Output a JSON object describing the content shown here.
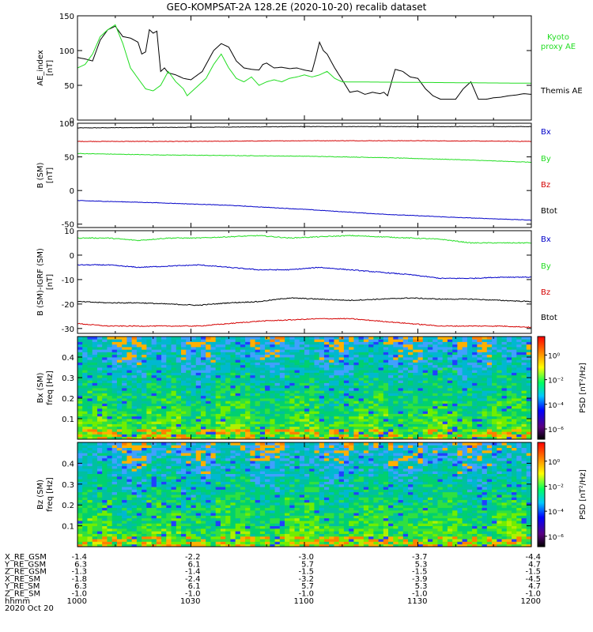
{
  "title": "GEO-KOMPSAT-2A 128.2E (2020-10-20) recalib dataset",
  "colors": {
    "black": "#000000",
    "red": "#d40000",
    "green": "#22dd22",
    "blue": "#0000c8",
    "kyoto": "#22dd22"
  },
  "chart_data": [
    {
      "type": "line",
      "id": "ae",
      "ylabel": "AE_index",
      "yunits": "[nT]",
      "ylim": [
        0,
        150
      ],
      "yticks": [
        0,
        50,
        100,
        150
      ],
      "xlim": [
        0,
        120
      ],
      "legend": [
        {
          "text": "Kyoto",
          "color": "#22dd22"
        },
        {
          "text": "proxy AE",
          "color": "#22dd22"
        },
        {
          "text": "Themis AE",
          "color": "#000000"
        }
      ],
      "series": [
        {
          "name": "Themis AE",
          "color": "#000000",
          "x": [
            0,
            2,
            4,
            6,
            8,
            10,
            12,
            14,
            16,
            17,
            18,
            19,
            20,
            21,
            22,
            23,
            24,
            26,
            28,
            30,
            33,
            36,
            38,
            40,
            42,
            44,
            46,
            48,
            49,
            50,
            52,
            54,
            56,
            58,
            60,
            62,
            63,
            64,
            65,
            66,
            68,
            70,
            72,
            74,
            76,
            78,
            80,
            81,
            82,
            84,
            86,
            88,
            90,
            92,
            94,
            96,
            98,
            100,
            102,
            104,
            106,
            108,
            110,
            112,
            114,
            116,
            118,
            120
          ],
          "values": [
            90,
            88,
            85,
            115,
            130,
            135,
            120,
            118,
            112,
            95,
            98,
            130,
            125,
            128,
            70,
            75,
            68,
            65,
            60,
            58,
            70,
            100,
            110,
            105,
            85,
            75,
            73,
            72,
            80,
            82,
            75,
            76,
            74,
            75,
            72,
            70,
            90,
            112,
            100,
            95,
            75,
            58,
            40,
            42,
            37,
            40,
            38,
            40,
            35,
            73,
            70,
            62,
            60,
            45,
            35,
            30,
            30,
            30,
            45,
            55,
            30,
            30,
            32,
            33,
            35,
            36,
            38,
            37
          ]
        },
        {
          "name": "Kyoto proxy AE",
          "color": "#22dd22",
          "x": [
            0,
            2,
            4,
            6,
            8,
            10,
            12,
            14,
            16,
            18,
            20,
            22,
            24,
            26,
            28,
            29,
            30,
            32,
            34,
            36,
            38,
            40,
            42,
            44,
            46,
            48,
            50,
            52,
            54,
            56,
            58,
            60,
            62,
            64,
            66,
            68,
            70,
            120
          ],
          "values": [
            75,
            80,
            95,
            120,
            130,
            137,
            110,
            75,
            60,
            45,
            42,
            50,
            70,
            55,
            45,
            35,
            40,
            50,
            60,
            80,
            95,
            75,
            60,
            55,
            62,
            50,
            55,
            58,
            55,
            60,
            62,
            65,
            62,
            65,
            70,
            60,
            55,
            53
          ]
        }
      ]
    },
    {
      "type": "line",
      "id": "bsm",
      "ylabel": "B (SM)",
      "yunits": "[nT]",
      "ylim": [
        -55,
        100
      ],
      "yticks": [
        -50,
        0,
        50,
        100
      ],
      "xlim": [
        0,
        120
      ],
      "legend": [
        {
          "text": "Bx",
          "color": "#0000c8"
        },
        {
          "text": "By",
          "color": "#22dd22"
        },
        {
          "text": "Bz",
          "color": "#d40000"
        },
        {
          "text": "Btot",
          "color": "#000000"
        }
      ],
      "series": [
        {
          "name": "Btot",
          "color": "#000000",
          "x": [
            0,
            30,
            60,
            90,
            120
          ],
          "values": [
            93,
            94,
            95,
            95,
            95
          ]
        },
        {
          "name": "Bz",
          "color": "#d40000",
          "x": [
            0,
            30,
            60,
            90,
            120
          ],
          "values": [
            73,
            73,
            74,
            74,
            73
          ]
        },
        {
          "name": "By",
          "color": "#22dd22",
          "x": [
            0,
            20,
            40,
            60,
            80,
            100,
            120
          ],
          "values": [
            55,
            53,
            52,
            51,
            49,
            46,
            42
          ]
        },
        {
          "name": "Bx",
          "color": "#0000c8",
          "x": [
            0,
            20,
            40,
            60,
            80,
            100,
            120
          ],
          "values": [
            -15,
            -18,
            -22,
            -28,
            -35,
            -40,
            -44
          ]
        }
      ]
    },
    {
      "type": "line",
      "id": "bigrf",
      "ylabel": "B (SM)-IGRF (SM)",
      "yunits": "[nT]",
      "ylim": [
        -32,
        10
      ],
      "yticks": [
        -30,
        -20,
        -10,
        0,
        10
      ],
      "xlim": [
        0,
        120
      ],
      "legend": [
        {
          "text": "Bx",
          "color": "#0000c8"
        },
        {
          "text": "By",
          "color": "#22dd22"
        },
        {
          "text": "Bz",
          "color": "#d40000"
        },
        {
          "text": "Btot",
          "color": "#000000"
        }
      ],
      "series": [
        {
          "name": "By",
          "color": "#22dd22",
          "x": [
            0,
            8,
            16,
            24,
            32,
            40,
            48,
            56,
            64,
            72,
            80,
            88,
            96,
            104,
            112,
            120
          ],
          "values": [
            7,
            7,
            6,
            7,
            7,
            7.5,
            8,
            7,
            7.5,
            8,
            7.5,
            7,
            6.5,
            5,
            5,
            5
          ]
        },
        {
          "name": "Bx",
          "color": "#0000c8",
          "x": [
            0,
            8,
            16,
            24,
            32,
            40,
            48,
            56,
            64,
            72,
            80,
            88,
            96,
            104,
            112,
            120
          ],
          "values": [
            -4,
            -4,
            -5,
            -4.5,
            -4,
            -5,
            -6,
            -6,
            -5,
            -6,
            -7,
            -8,
            -9.5,
            -9.5,
            -9,
            -9
          ]
        },
        {
          "name": "Btot",
          "color": "#000000",
          "x": [
            0,
            8,
            16,
            24,
            32,
            40,
            48,
            56,
            64,
            72,
            80,
            88,
            96,
            104,
            112,
            120
          ],
          "values": [
            -19,
            -19.5,
            -19.5,
            -20,
            -20.5,
            -19.5,
            -19,
            -17.5,
            -18,
            -18.5,
            -18,
            -17.5,
            -18,
            -18,
            -18.5,
            -19
          ]
        },
        {
          "name": "Bz",
          "color": "#d40000",
          "x": [
            0,
            8,
            16,
            24,
            32,
            40,
            48,
            56,
            64,
            72,
            80,
            88,
            96,
            104,
            112,
            120
          ],
          "values": [
            -28,
            -29,
            -29,
            -29,
            -29,
            -28,
            -27,
            -26.5,
            -26,
            -26,
            -27,
            -28,
            -29,
            -29,
            -29,
            -29.5
          ]
        }
      ]
    },
    {
      "type": "heatmap",
      "id": "bx_spec",
      "ylabel": "Bx (SM)",
      "yunits": "freq [Hz]",
      "ylim": [
        0,
        0.5
      ],
      "yticks": [
        0.1,
        0.2,
        0.3,
        0.4
      ],
      "colorbar": {
        "label": "PSD [nT²/Hz]",
        "ticks": [
          "10⁰",
          "10⁻²",
          "10⁻⁴",
          "10⁻⁶"
        ]
      }
    },
    {
      "type": "heatmap",
      "id": "bz_spec",
      "ylabel": "Bz (SM)",
      "yunits": "freq [Hz]",
      "ylim": [
        0,
        0.5
      ],
      "yticks": [
        0.1,
        0.2,
        0.3,
        0.4
      ],
      "colorbar": {
        "label": "PSD [nT²/Hz]",
        "ticks": [
          "10⁰",
          "10⁻²",
          "10⁻⁴",
          "10⁻⁶"
        ]
      }
    }
  ],
  "orbit_table": {
    "labels": [
      "X_RE_GSM",
      "Y_RE_GSM",
      "Z_RE_GSM",
      "X_RE_SM",
      "Y_RE_SM",
      "Z_RE_SM",
      "hhmm",
      "2020 Oct 20"
    ],
    "columns": [
      [
        "-1.4",
        "6.3",
        "-1.3",
        "-1.8",
        "6.3",
        "-1.0",
        "1000"
      ],
      [
        "-2.2",
        "6.1",
        "-1.4",
        "-2.4",
        "6.1",
        "-1.0",
        "1030"
      ],
      [
        "-3.0",
        "5.7",
        "-1.5",
        "-3.2",
        "5.7",
        "-1.0",
        "1100"
      ],
      [
        "-3.7",
        "5.3",
        "-1.5",
        "-3.9",
        "5.3",
        "-1.0",
        "1130"
      ],
      [
        "-4.4",
        "4.7",
        "-1.5",
        "-4.5",
        "4.7",
        "-1.0",
        "1200"
      ]
    ]
  }
}
